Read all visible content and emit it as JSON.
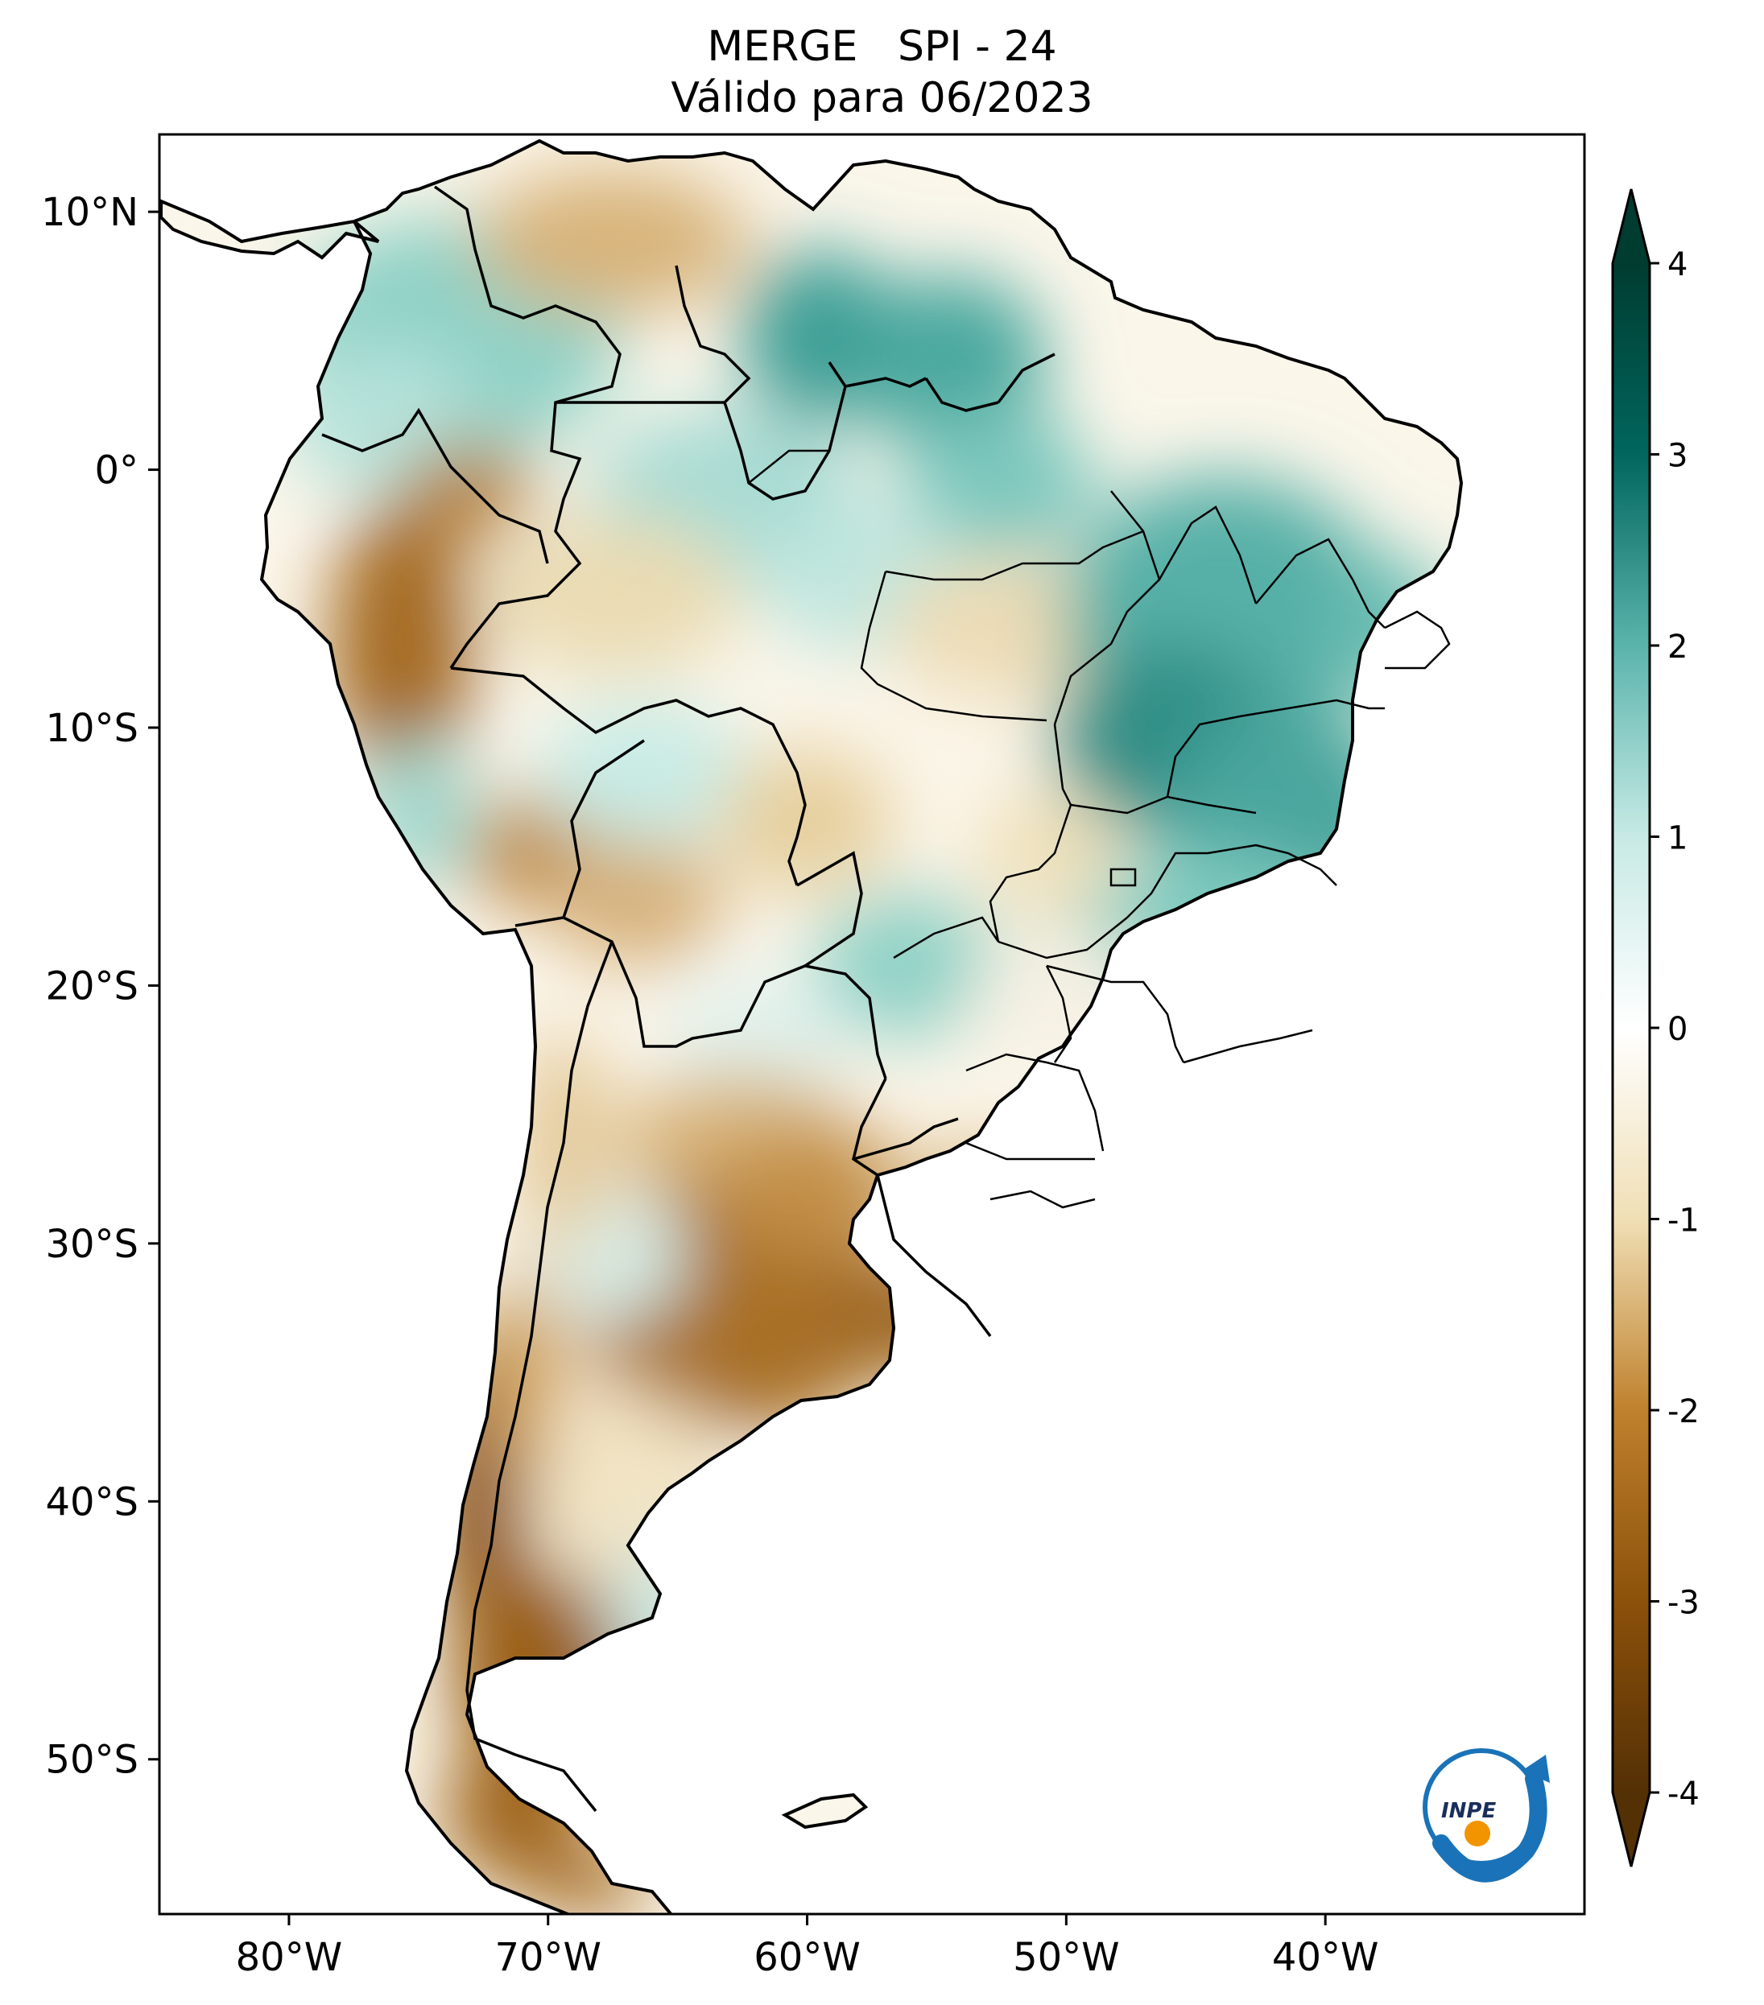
{
  "title": {
    "line1": "MERGE   SPI - 24",
    "line2": "Válido para 06/2023"
  },
  "axes": {
    "lat_labels": [
      "10°N",
      "0°",
      "10°S",
      "20°S",
      "30°S",
      "40°S",
      "50°S"
    ],
    "lat_values": [
      10,
      0,
      -10,
      -20,
      -30,
      -40,
      -50
    ],
    "lon_labels": [
      "80°W",
      "70°W",
      "60°W",
      "50°W",
      "40°W"
    ],
    "lon_values": [
      -80,
      -70,
      -60,
      -50,
      -40
    ],
    "lat_range": [
      -56,
      13
    ],
    "lon_range": [
      -85,
      -30
    ]
  },
  "colorbar": {
    "tick_labels": [
      "4",
      "3",
      "2",
      "1",
      "0",
      "-1",
      "-2",
      "-3",
      "-4"
    ],
    "tick_values": [
      4,
      3,
      2,
      1,
      0,
      -1,
      -2,
      -3,
      -4
    ],
    "range": [
      -4,
      4
    ],
    "extend": "both",
    "colormap": "BrBG",
    "stops": [
      {
        "value": -4,
        "color": "#543005"
      },
      {
        "value": -3,
        "color": "#8c510a"
      },
      {
        "value": -2,
        "color": "#bf812d"
      },
      {
        "value": -1,
        "color": "#f0dfb5"
      },
      {
        "value": 0,
        "color": "#ffffff"
      },
      {
        "value": 1,
        "color": "#c7eae5"
      },
      {
        "value": 2,
        "color": "#5ab4ac"
      },
      {
        "value": 3,
        "color": "#01665e"
      },
      {
        "value": 4,
        "color": "#003c30"
      }
    ]
  },
  "logo": {
    "text": "INPE",
    "icon": "inpe-logo-icon",
    "blue": "#1a73b8",
    "orange": "#f29400"
  },
  "map": {
    "variable": "SPI - 24",
    "region": "South America",
    "colors": {
      "dry_strong": "#8c510a",
      "dry": "#d2a866",
      "dry_light": "#f0dfb5",
      "neutral": "#ffffff",
      "wet_light": "#c7eae5",
      "wet": "#5ab4ac",
      "wet_strong": "#01665e",
      "border": "#000000"
    }
  }
}
